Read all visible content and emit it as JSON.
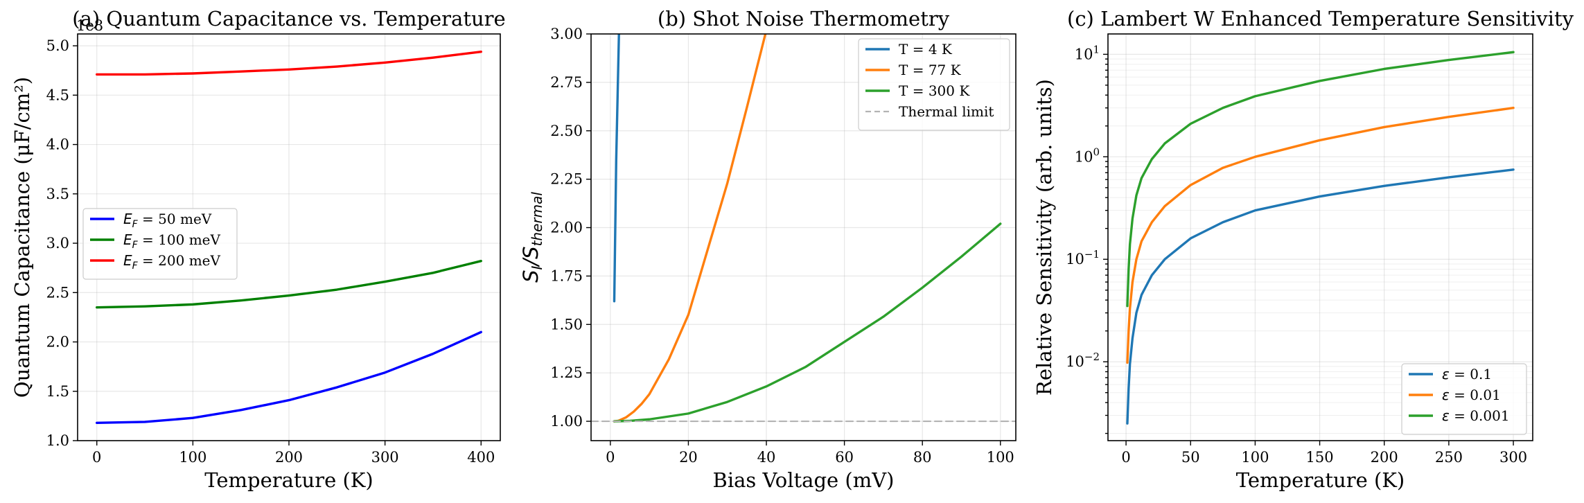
{
  "chart_data": [
    {
      "type": "line",
      "title": "(a) Quantum Capacitance vs. Temperature",
      "xlabel": "Temperature (K)",
      "ylabel": "Quantum Capacitance (μF/cm²)",
      "offset_text": "1e8",
      "xlim": [
        -20,
        420
      ],
      "ylim": [
        1.0,
        5.12
      ],
      "xticks": [
        0,
        100,
        200,
        300,
        400
      ],
      "xtick_labels": [
        "0",
        "100",
        "200",
        "300",
        "400"
      ],
      "yticks": [
        1.0,
        1.5,
        2.0,
        2.5,
        3.0,
        3.5,
        4.0,
        4.5,
        5.0
      ],
      "ytick_labels": [
        "1.0",
        "1.5",
        "2.0",
        "2.5",
        "3.0",
        "3.5",
        "4.0",
        "4.5",
        "5.0"
      ],
      "grid": true,
      "legend_position": "center-left",
      "series": [
        {
          "name": "E_F = 50 meV",
          "label_sub": "F",
          "label_rest": " = 50 meV",
          "color": "#0000ff",
          "x": [
            0,
            50,
            100,
            150,
            200,
            250,
            300,
            350,
            400
          ],
          "y": [
            1.18,
            1.19,
            1.23,
            1.31,
            1.41,
            1.54,
            1.69,
            1.88,
            2.1
          ]
        },
        {
          "name": "E_F = 100 meV",
          "label_sub": "F",
          "label_rest": " = 100 meV",
          "color": "#008000",
          "x": [
            0,
            50,
            100,
            150,
            200,
            250,
            300,
            350,
            400
          ],
          "y": [
            2.35,
            2.36,
            2.38,
            2.42,
            2.47,
            2.53,
            2.61,
            2.7,
            2.82
          ]
        },
        {
          "name": "E_F = 200 meV",
          "label_sub": "F",
          "label_rest": " = 200 meV",
          "color": "#ff0000",
          "x": [
            0,
            50,
            100,
            150,
            200,
            250,
            300,
            350,
            400
          ],
          "y": [
            4.71,
            4.71,
            4.72,
            4.74,
            4.76,
            4.79,
            4.83,
            4.88,
            4.94
          ]
        }
      ]
    },
    {
      "type": "line",
      "title": "(b) Shot Noise Thermometry",
      "xlabel": "Bias Voltage (mV)",
      "ylabel_main": "S",
      "ylabel_sub1": "I",
      "ylabel_mid": "/S",
      "ylabel_sub2": "thermal",
      "xlim": [
        -4.95,
        103.95
      ],
      "ylim": [
        0.9,
        3.0
      ],
      "xticks": [
        0,
        20,
        40,
        60,
        80,
        100
      ],
      "xtick_labels": [
        "0",
        "20",
        "40",
        "60",
        "80",
        "100"
      ],
      "yticks": [
        1.0,
        1.25,
        1.5,
        1.75,
        2.0,
        2.25,
        2.5,
        2.75,
        3.0
      ],
      "ytick_labels": [
        "1.00",
        "1.25",
        "1.50",
        "1.75",
        "2.00",
        "2.25",
        "2.50",
        "2.75",
        "3.00"
      ],
      "grid": true,
      "legend_position": "top-right",
      "series": [
        {
          "name": "T = 4 K",
          "color": "#1f77b4",
          "x": [
            1,
            1.5,
            2.2
          ],
          "y": [
            1.62,
            2.35,
            3.0
          ]
        },
        {
          "name": "T = 77 K",
          "color": "#ff7f0e",
          "x": [
            1,
            2,
            4,
            6,
            8,
            10,
            15,
            20,
            25,
            30,
            35,
            40
          ],
          "y": [
            1.0,
            1.002,
            1.02,
            1.05,
            1.09,
            1.14,
            1.32,
            1.55,
            1.89,
            2.23,
            2.62,
            3.02
          ]
        },
        {
          "name": "T = 300 K",
          "color": "#2ca02c",
          "x": [
            1,
            5,
            10,
            20,
            30,
            40,
            50,
            60,
            70,
            80,
            90,
            100
          ],
          "y": [
            1.0,
            1.002,
            1.01,
            1.04,
            1.1,
            1.18,
            1.28,
            1.41,
            1.54,
            1.69,
            1.85,
            2.02
          ]
        },
        {
          "name": "Thermal limit",
          "color": "#b3b3b3",
          "dashed": true,
          "x": [
            -4.95,
            103.95
          ],
          "y": [
            1.0,
            1.0
          ]
        }
      ]
    },
    {
      "type": "line",
      "title": "(c) Lambert W Enhanced Temperature Sensitivity",
      "xlabel": "Temperature (K)",
      "ylabel": "Relative Sensitivity (arb. units)",
      "yscale": "log",
      "xlim": [
        -14,
        315
      ],
      "ylim": [
        0.0017,
        15.8
      ],
      "xticks": [
        0,
        50,
        100,
        150,
        200,
        250,
        300
      ],
      "xtick_labels": [
        "0",
        "50",
        "100",
        "150",
        "200",
        "250",
        "300"
      ],
      "yticks": [
        0.01,
        0.1,
        1,
        10
      ],
      "ytick_base": [
        "10",
        "10",
        "10",
        "10"
      ],
      "ytick_exp": [
        "−2",
        "−1",
        "0",
        "1"
      ],
      "grid": true,
      "legend_position": "lower-right",
      "series": [
        {
          "name": "ε = 0.1",
          "label_rest": " = 0.1",
          "color": "#1f77b4",
          "x": [
            1,
            2,
            3,
            5,
            8,
            12,
            20,
            30,
            50,
            75,
            100,
            150,
            200,
            250,
            300
          ],
          "y": [
            0.0025,
            0.0055,
            0.0095,
            0.017,
            0.03,
            0.045,
            0.07,
            0.1,
            0.16,
            0.23,
            0.3,
            0.41,
            0.52,
            0.63,
            0.75
          ]
        },
        {
          "name": "ε = 0.01",
          "label_rest": " = 0.01",
          "color": "#ff7f0e",
          "x": [
            1,
            2,
            3,
            5,
            8,
            12,
            20,
            30,
            50,
            75,
            100,
            150,
            200,
            250,
            300
          ],
          "y": [
            0.0098,
            0.02,
            0.033,
            0.06,
            0.1,
            0.15,
            0.23,
            0.33,
            0.53,
            0.78,
            1.0,
            1.45,
            1.95,
            2.45,
            3.0
          ]
        },
        {
          "name": "ε = 0.001",
          "label_rest": " = 0.001",
          "color": "#2ca02c",
          "x": [
            1,
            2,
            3,
            5,
            8,
            12,
            20,
            30,
            50,
            75,
            100,
            150,
            200,
            250,
            300
          ],
          "y": [
            0.035,
            0.08,
            0.14,
            0.25,
            0.42,
            0.62,
            0.95,
            1.35,
            2.1,
            3.0,
            3.9,
            5.5,
            7.2,
            8.8,
            10.5
          ]
        }
      ]
    }
  ]
}
